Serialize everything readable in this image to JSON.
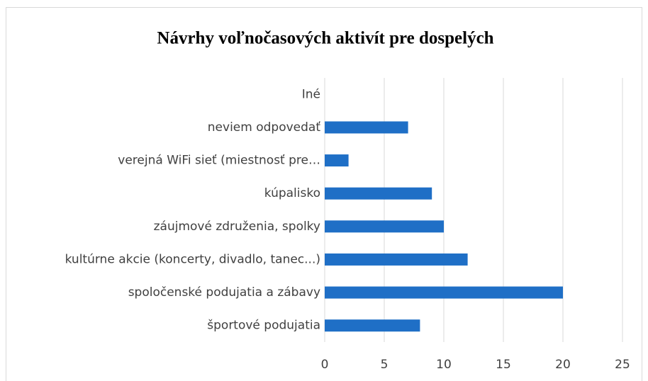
{
  "chart_data": {
    "type": "bar",
    "orientation": "horizontal",
    "title": "Návrhy voľnočasových aktivít pre dospelých",
    "categories": [
      "Iné",
      "neviem odpovedať",
      "verejná WiFi sieť (miestnosť pre…",
      "kúpalisko",
      "záujmové združenia, spolky",
      "kultúrne akcie (koncerty, divadlo, tanec...)",
      "spoločenské podujatia a zábavy",
      "športové podujatia"
    ],
    "values": [
      0,
      7,
      2,
      9,
      10,
      12,
      20,
      8
    ],
    "color": "#1f6fc6",
    "xlim": [
      0,
      25
    ],
    "xticks": [
      0,
      5,
      10,
      15,
      20,
      25
    ],
    "grid": true
  }
}
